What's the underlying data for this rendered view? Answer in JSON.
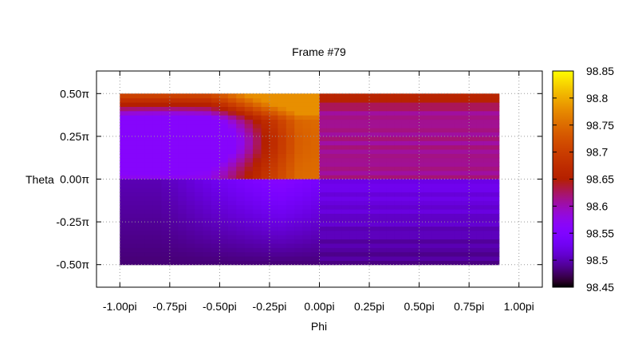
{
  "chart_data": {
    "type": "heatmap",
    "title": "Frame #79",
    "xlabel": "Phi",
    "ylabel": "Theta",
    "xlim": [
      -1.117,
      1.117
    ],
    "ylim": [
      -0.632,
      0.632
    ],
    "x_range": [
      -1.0,
      0.9
    ],
    "y_range": [
      -0.5,
      0.5
    ],
    "x_ticks": [
      {
        "value": -1.0,
        "label": "-1.00pi"
      },
      {
        "value": -0.75,
        "label": "-0.75pi"
      },
      {
        "value": -0.5,
        "label": "-0.50pi"
      },
      {
        "value": -0.25,
        "label": "-0.25pi"
      },
      {
        "value": 0.0,
        "label": "0.00pi"
      },
      {
        "value": 0.25,
        "label": "0.25pi"
      },
      {
        "value": 0.5,
        "label": "0.50pi"
      },
      {
        "value": 0.75,
        "label": "0.75pi"
      },
      {
        "value": 1.0,
        "label": "1.00pi"
      }
    ],
    "y_ticks": [
      {
        "value": 0.5,
        "label": "0.50π"
      },
      {
        "value": 0.25,
        "label": "0.25π"
      },
      {
        "value": 0.0,
        "label": "0.00π"
      },
      {
        "value": -0.25,
        "label": "-0.25π"
      },
      {
        "value": -0.5,
        "label": "-0.50π"
      }
    ],
    "colorbar": {
      "min": 98.45,
      "max": 98.85,
      "ticks": [
        {
          "value": 98.85,
          "label": "98.85"
        },
        {
          "value": 98.8,
          "label": "98.8"
        },
        {
          "value": 98.75,
          "label": "98.75"
        },
        {
          "value": 98.7,
          "label": "98.7"
        },
        {
          "value": 98.65,
          "label": "98.65"
        },
        {
          "value": 98.6,
          "label": "98.6"
        },
        {
          "value": 98.55,
          "label": "98.55"
        },
        {
          "value": 98.5,
          "label": "98.5"
        },
        {
          "value": 98.45,
          "label": "98.45"
        }
      ],
      "colormap": "gnuplot-pm3d"
    },
    "grid": true,
    "regions": [
      {
        "name": "upper-left",
        "x": [
          -1.0,
          0.0
        ],
        "y": [
          0.0,
          0.5
        ],
        "pattern": "smooth",
        "low_value": 98.56,
        "high_value": 98.78
      },
      {
        "name": "upper-right",
        "x": [
          0.0,
          0.9
        ],
        "y": [
          0.0,
          0.5
        ],
        "pattern": "banded",
        "low_value": 98.58,
        "high_value": 98.68
      },
      {
        "name": "lower-left",
        "x": [
          -1.0,
          0.0
        ],
        "y": [
          -0.5,
          0.0
        ],
        "pattern": "smooth",
        "low_value": 98.48,
        "high_value": 98.56
      },
      {
        "name": "lower-right",
        "x": [
          0.0,
          0.9
        ],
        "y": [
          -0.5,
          0.0
        ],
        "pattern": "banded",
        "low_value": 98.48,
        "high_value": 98.54
      }
    ]
  }
}
